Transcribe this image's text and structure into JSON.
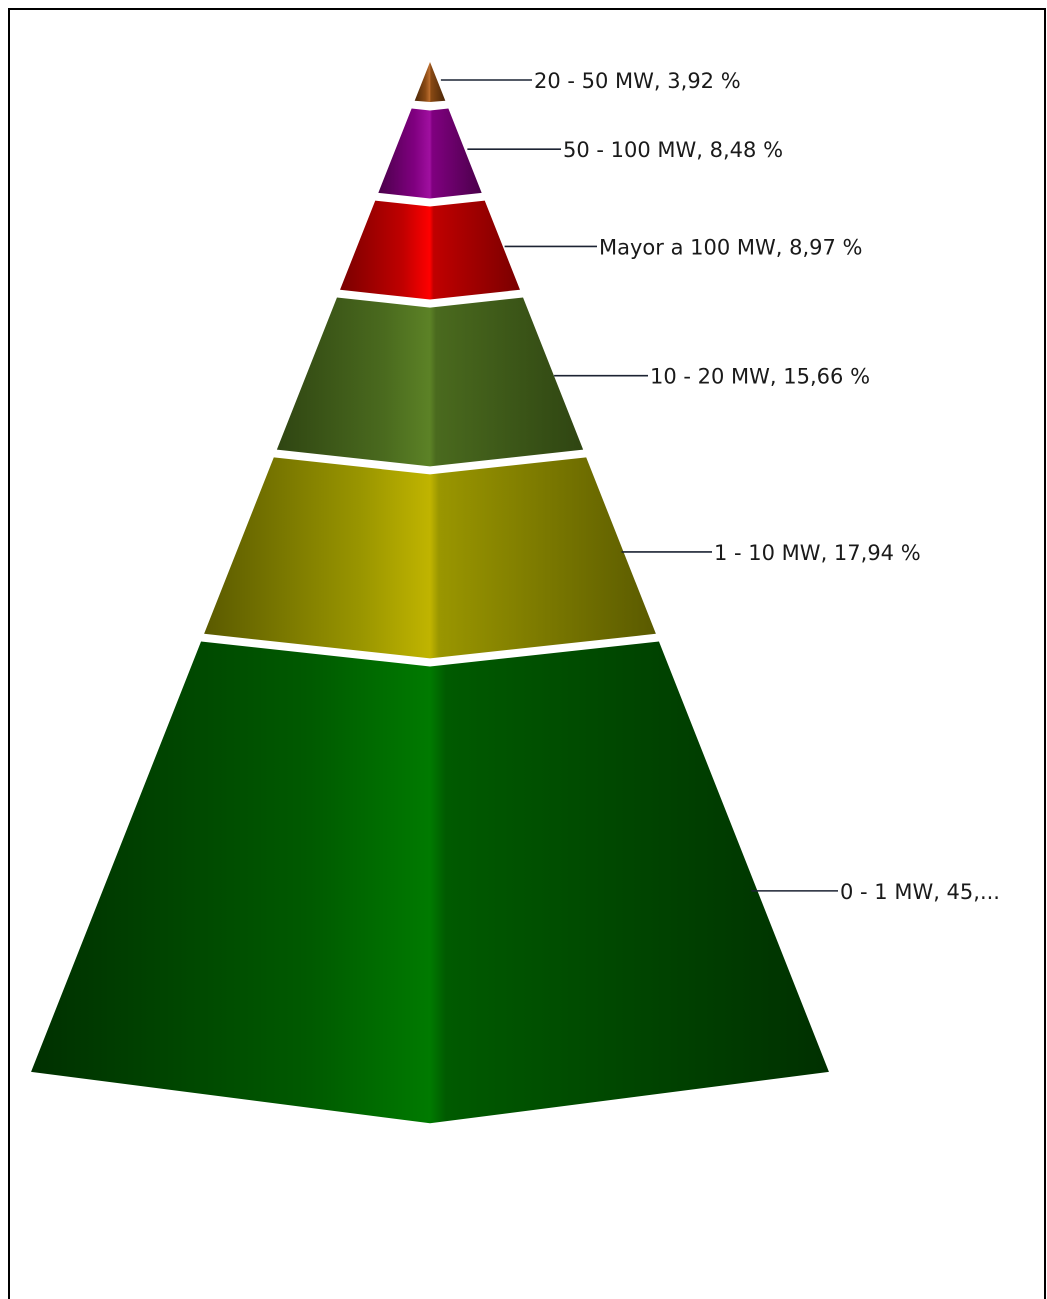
{
  "chart_data": {
    "type": "pyramid",
    "title": "",
    "segments": [
      {
        "label": "20 - 50 MW, 3,92 %",
        "name": "20 - 50 MW",
        "value": 3.92,
        "color": "#8a4a14",
        "dark": "#4a2608",
        "light": "#c07030"
      },
      {
        "label": "50 - 100 MW, 8,48 %",
        "name": "50 - 100 MW",
        "value": 8.48,
        "color": "#800080",
        "dark": "#4a004a",
        "light": "#a010a0"
      },
      {
        "label": "Mayor a 100 MW, 8,97 %",
        "name": "Mayor a 100 MW",
        "value": 8.97,
        "color": "#c00000",
        "dark": "#7a0000",
        "light": "#ff0000"
      },
      {
        "label": "10 - 20 MW, 15,66 %",
        "name": "10 - 20 MW",
        "value": 15.66,
        "color": "#4a6a1e",
        "dark": "#2f4512",
        "light": "#5c8226"
      },
      {
        "label": "1 - 10 MW, 17,94 %",
        "name": "1 - 10 MW",
        "value": 17.94,
        "color": "#9a9600",
        "dark": "#5a5a00",
        "light": "#c0b400"
      },
      {
        "label": "0 - 1 MW, 45,...",
        "name": "0 - 1 MW",
        "value": 45.03,
        "color": "#005a00",
        "dark": "#003000",
        "light": "#007a00"
      }
    ]
  }
}
